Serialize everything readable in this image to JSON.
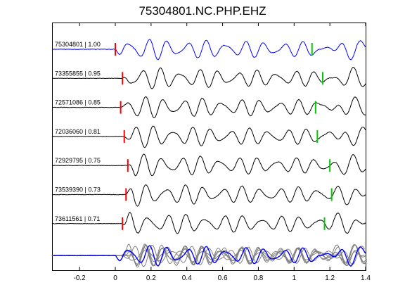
{
  "title": "75304801.NC.PHP.EHZ",
  "chart_data": {
    "type": "line",
    "title": "75304801.NC.PHP.EHZ",
    "xlabel": "",
    "ylabel": "",
    "xlim": [
      -0.35,
      1.4
    ],
    "x_ticks": [
      -0.2,
      0,
      0.2,
      0.4,
      0.6,
      0.8,
      1,
      1.2,
      1.4
    ],
    "x_tick_labels": [
      "-0.2",
      "0",
      "0.2",
      "0.4",
      "0.6",
      "0.8",
      "1",
      "1.2",
      "1.4"
    ],
    "grid": false,
    "colors": {
      "reference": "#0000ff",
      "trace": "#000000",
      "stack": "#808080",
      "p_pick": "#ff0000",
      "s_pick": "#00cc00"
    },
    "series": [
      {
        "label": "75304801 | 1.00",
        "p_pick": 0.0,
        "s_pick": 1.1,
        "kind": "reference"
      },
      {
        "label": "73355855 | 0.95",
        "p_pick": 0.04,
        "s_pick": 1.16,
        "kind": "trace"
      },
      {
        "label": "72571086 | 0.85",
        "p_pick": 0.03,
        "s_pick": 1.12,
        "kind": "trace"
      },
      {
        "label": "72036060 | 0.81",
        "p_pick": 0.05,
        "s_pick": 1.13,
        "kind": "trace"
      },
      {
        "label": "72929795 | 0.75",
        "p_pick": 0.07,
        "s_pick": 1.2,
        "kind": "trace"
      },
      {
        "label": "73539390 | 0.73",
        "p_pick": 0.06,
        "s_pick": 1.21,
        "kind": "trace"
      },
      {
        "label": "73611561 | 0.71",
        "p_pick": 0.04,
        "s_pick": 1.17,
        "kind": "trace"
      }
    ],
    "stack_panel": {
      "label": "",
      "members": 7
    }
  }
}
